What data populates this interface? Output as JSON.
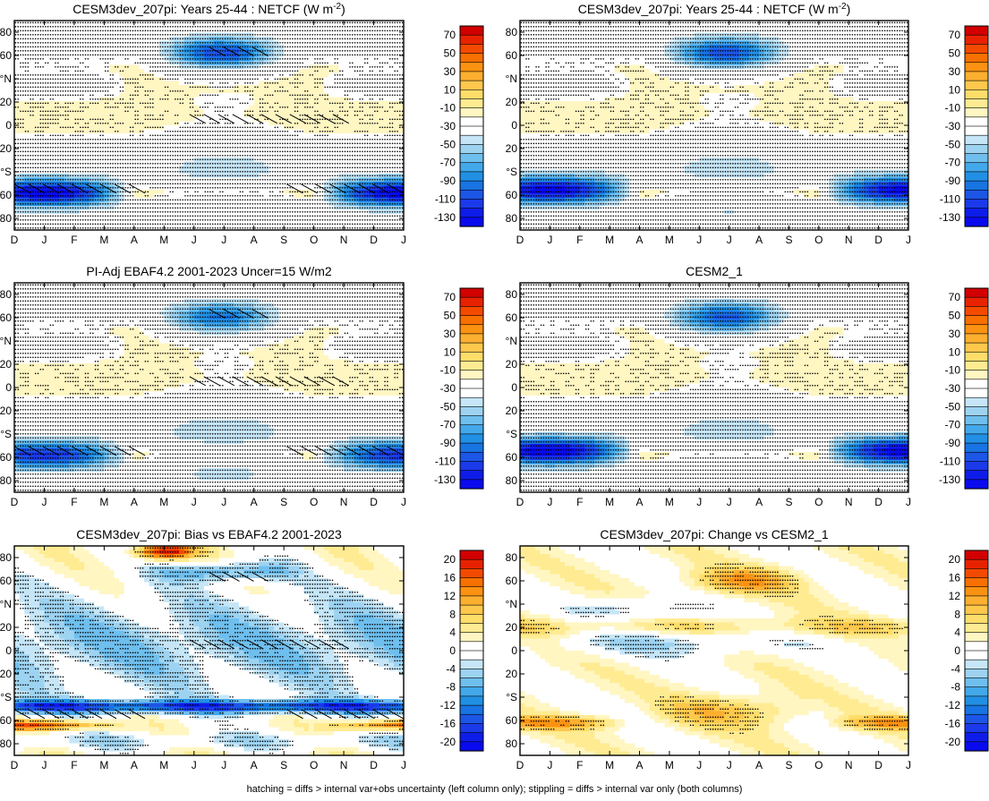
{
  "figure": {
    "footnote": "hatching = diffs > internal var+obs uncertainty (left column only); stippling = diffs > internal var only (both columns)",
    "months": [
      "D",
      "J",
      "F",
      "M",
      "A",
      "M",
      "J",
      "J",
      "A",
      "S",
      "O",
      "N",
      "D",
      "J"
    ],
    "lat_ticks": [
      {
        "value": 80,
        "label": "80"
      },
      {
        "value": 60,
        "label": "60"
      },
      {
        "value": 40,
        "label": "°N"
      },
      {
        "value": 20,
        "label": "20"
      },
      {
        "value": 0,
        "label": "0"
      },
      {
        "value": -20,
        "label": "20"
      },
      {
        "value": -40,
        "label": "°S"
      },
      {
        "value": -60,
        "label": "60"
      },
      {
        "value": -80,
        "label": "80"
      }
    ]
  },
  "chart_data": [
    {
      "type": "heatmap",
      "title": "CESM3dev_207pi: Years 25-44 : NETCF (W m",
      "title_superscript": "-2",
      "title_suffix": ")",
      "xlabel": "",
      "ylabel": "",
      "ylim": [
        -90,
        90
      ],
      "scale": "absolute",
      "colorbar": {
        "labels": [
          "70",
          "50",
          "30",
          "10",
          "-10",
          "-30",
          "-50",
          "-70",
          "-90",
          "-110",
          "-130"
        ]
      },
      "fields": {
        "nh_min": -88,
        "nh_center_lat": 62,
        "sh_min": -122,
        "sh_center_lat": -58,
        "summer_max": -24,
        "hatching": true,
        "stippling": true
      }
    },
    {
      "type": "heatmap",
      "title": "CESM3dev_207pi: Years 25-44 : NETCF (W m",
      "title_superscript": "-2",
      "title_suffix": ")",
      "xlabel": "",
      "ylabel": "",
      "ylim": [
        -90,
        90
      ],
      "scale": "absolute",
      "colorbar": {
        "labels": [
          "70",
          "50",
          "30",
          "10",
          "-10",
          "-30",
          "-50",
          "-70",
          "-90",
          "-110",
          "-130"
        ]
      },
      "fields": {
        "nh_min": -85,
        "nh_center_lat": 62,
        "sh_min": -118,
        "sh_center_lat": -56,
        "summer_max": -26,
        "hatching": false,
        "stippling": true
      }
    },
    {
      "type": "heatmap",
      "title": "PI-Adj EBAF4.2 2001-2023 Uncer=15 W/m2",
      "xlabel": "",
      "ylabel": "",
      "ylim": [
        -90,
        90
      ],
      "scale": "absolute",
      "colorbar": {
        "labels": [
          "70",
          "50",
          "30",
          "10",
          "-10",
          "-30",
          "-50",
          "-70",
          "-90",
          "-110",
          "-130"
        ]
      },
      "fields": {
        "nh_min": -72,
        "nh_center_lat": 60,
        "sh_min": -100,
        "sh_center_lat": -58,
        "summer_max": -32,
        "hatching": true,
        "stippling": true
      }
    },
    {
      "type": "heatmap",
      "title": "CESM2_1",
      "xlabel": "",
      "ylabel": "",
      "ylim": [
        -90,
        90
      ],
      "scale": "absolute",
      "colorbar": {
        "labels": [
          "70",
          "50",
          "30",
          "10",
          "-10",
          "-30",
          "-50",
          "-70",
          "-90",
          "-110",
          "-130"
        ]
      },
      "fields": {
        "nh_min": -82,
        "nh_center_lat": 60,
        "sh_min": -122,
        "sh_center_lat": -55,
        "summer_max": -24,
        "hatching": false,
        "stippling": true
      }
    },
    {
      "type": "heatmap",
      "title": "CESM3dev_207pi: Bias vs EBAF4.2 2001-2023",
      "xlabel": "",
      "ylabel": "",
      "ylim": [
        -90,
        90
      ],
      "scale": "difference",
      "colorbar": {
        "labels": [
          "20",
          "16",
          "12",
          "8",
          "4",
          "0",
          "-4",
          "-8",
          "-12",
          "-16",
          "-20"
        ]
      },
      "fields": {
        "tropics_bias": -7,
        "sh_band_bias": -17,
        "sh_band_lat": -48,
        "polar_bias": 14,
        "polar_lat": -64,
        "nh_bias": -10,
        "hatching": true,
        "stippling": true
      }
    },
    {
      "type": "heatmap",
      "title": "CESM3dev_207pi: Change vs CESM2_1",
      "xlabel": "",
      "ylabel": "",
      "ylim": [
        -90,
        90
      ],
      "scale": "difference",
      "colorbar": {
        "labels": [
          "20",
          "16",
          "12",
          "8",
          "4",
          "0",
          "-4",
          "-8",
          "-12",
          "-16",
          "-20"
        ]
      },
      "fields": {
        "tropics_change": -6,
        "nh_change": 9,
        "sh_change": 7,
        "hatching": false,
        "stippling": true
      }
    }
  ]
}
